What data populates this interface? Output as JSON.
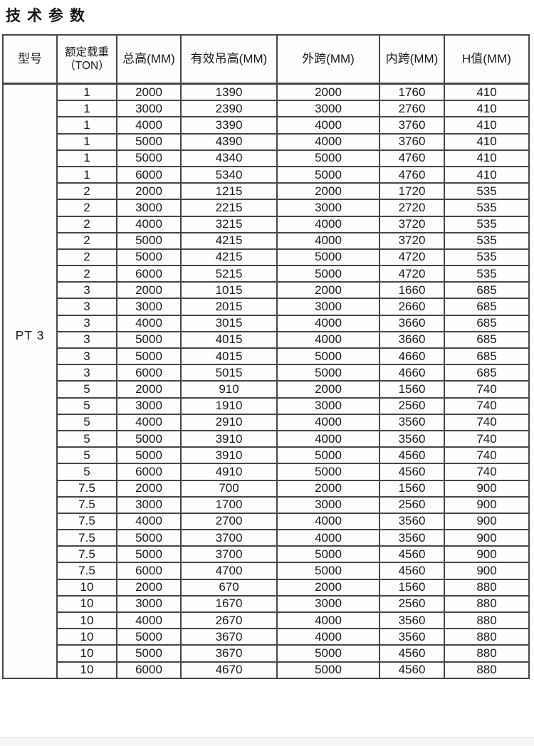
{
  "title": "技术参数",
  "colors": {
    "background": "#ffffff",
    "text": "#1a1a1a",
    "grid_border": "#474747",
    "footer_band": "#f6f6f6"
  },
  "table": {
    "model": "PT 3",
    "headers": [
      "型号",
      "额定载重（TON）",
      "总高(MM)",
      "有效吊高(MM)",
      "外跨(MM)",
      "内跨(MM)",
      "H值(MM)"
    ],
    "rows": [
      [
        "1",
        "2000",
        "1390",
        "2000",
        "1760",
        "410"
      ],
      [
        "1",
        "3000",
        "2390",
        "3000",
        "2760",
        "410"
      ],
      [
        "1",
        "4000",
        "3390",
        "4000",
        "3760",
        "410"
      ],
      [
        "1",
        "5000",
        "4390",
        "4000",
        "3760",
        "410"
      ],
      [
        "1",
        "5000",
        "4340",
        "5000",
        "4760",
        "410"
      ],
      [
        "1",
        "6000",
        "5340",
        "5000",
        "4760",
        "410"
      ],
      [
        "2",
        "2000",
        "1215",
        "2000",
        "1720",
        "535"
      ],
      [
        "2",
        "3000",
        "2215",
        "3000",
        "2720",
        "535"
      ],
      [
        "2",
        "4000",
        "3215",
        "4000",
        "3720",
        "535"
      ],
      [
        "2",
        "5000",
        "4215",
        "4000",
        "3720",
        "535"
      ],
      [
        "2",
        "5000",
        "4215",
        "5000",
        "4720",
        "535"
      ],
      [
        "2",
        "6000",
        "5215",
        "5000",
        "4720",
        "535"
      ],
      [
        "3",
        "2000",
        "1015",
        "2000",
        "1660",
        "685"
      ],
      [
        "3",
        "3000",
        "2015",
        "3000",
        "2660",
        "685"
      ],
      [
        "3",
        "4000",
        "3015",
        "4000",
        "3660",
        "685"
      ],
      [
        "3",
        "5000",
        "4015",
        "4000",
        "3660",
        "685"
      ],
      [
        "3",
        "5000",
        "4015",
        "5000",
        "4660",
        "685"
      ],
      [
        "3",
        "6000",
        "5015",
        "5000",
        "4660",
        "685"
      ],
      [
        "5",
        "2000",
        "910",
        "2000",
        "1560",
        "740"
      ],
      [
        "5",
        "3000",
        "1910",
        "3000",
        "2560",
        "740"
      ],
      [
        "5",
        "4000",
        "2910",
        "4000",
        "3560",
        "740"
      ],
      [
        "5",
        "5000",
        "3910",
        "4000",
        "3560",
        "740"
      ],
      [
        "5",
        "5000",
        "3910",
        "5000",
        "4560",
        "740"
      ],
      [
        "5",
        "6000",
        "4910",
        "5000",
        "4560",
        "740"
      ],
      [
        "7.5",
        "2000",
        "700",
        "2000",
        "1560",
        "900"
      ],
      [
        "7.5",
        "3000",
        "1700",
        "3000",
        "2560",
        "900"
      ],
      [
        "7.5",
        "4000",
        "2700",
        "4000",
        "3560",
        "900"
      ],
      [
        "7.5",
        "5000",
        "3700",
        "4000",
        "3560",
        "900"
      ],
      [
        "7.5",
        "5000",
        "3700",
        "5000",
        "4560",
        "900"
      ],
      [
        "7.5",
        "6000",
        "4700",
        "5000",
        "4560",
        "900"
      ],
      [
        "10",
        "2000",
        "670",
        "2000",
        "1560",
        "880"
      ],
      [
        "10",
        "3000",
        "1670",
        "3000",
        "2560",
        "880"
      ],
      [
        "10",
        "4000",
        "2670",
        "4000",
        "3560",
        "880"
      ],
      [
        "10",
        "5000",
        "3670",
        "4000",
        "3560",
        "880"
      ],
      [
        "10",
        "5000",
        "3670",
        "5000",
        "4560",
        "880"
      ],
      [
        "10",
        "6000",
        "4670",
        "5000",
        "4560",
        "880"
      ]
    ]
  }
}
